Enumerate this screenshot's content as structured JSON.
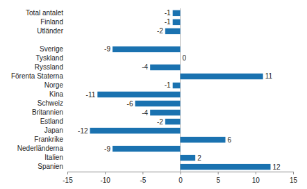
{
  "chart_data": {
    "type": "bar",
    "orientation": "horizontal",
    "categories": [
      "Total antalet",
      "Finland",
      "Utländer",
      null,
      "Sverige",
      "Tyskland",
      "Ryssland",
      "Förenta Staterna",
      "Norge",
      "Kina",
      "Schweiz",
      "Britannien",
      "Estland",
      "Japan",
      "Frankrike",
      "Nederländerna",
      "Italien",
      "Spanien"
    ],
    "values": [
      -1,
      -1,
      -2,
      null,
      -9,
      0,
      -4,
      11,
      -1,
      -11,
      -6,
      -4,
      -2,
      -12,
      6,
      -9,
      2,
      12
    ],
    "color": "#1a72b0",
    "xlim": [
      -15,
      15
    ],
    "xticks": [
      -15,
      -10,
      -5,
      0,
      5,
      10,
      15
    ],
    "grid": false,
    "data_labels": true
  }
}
